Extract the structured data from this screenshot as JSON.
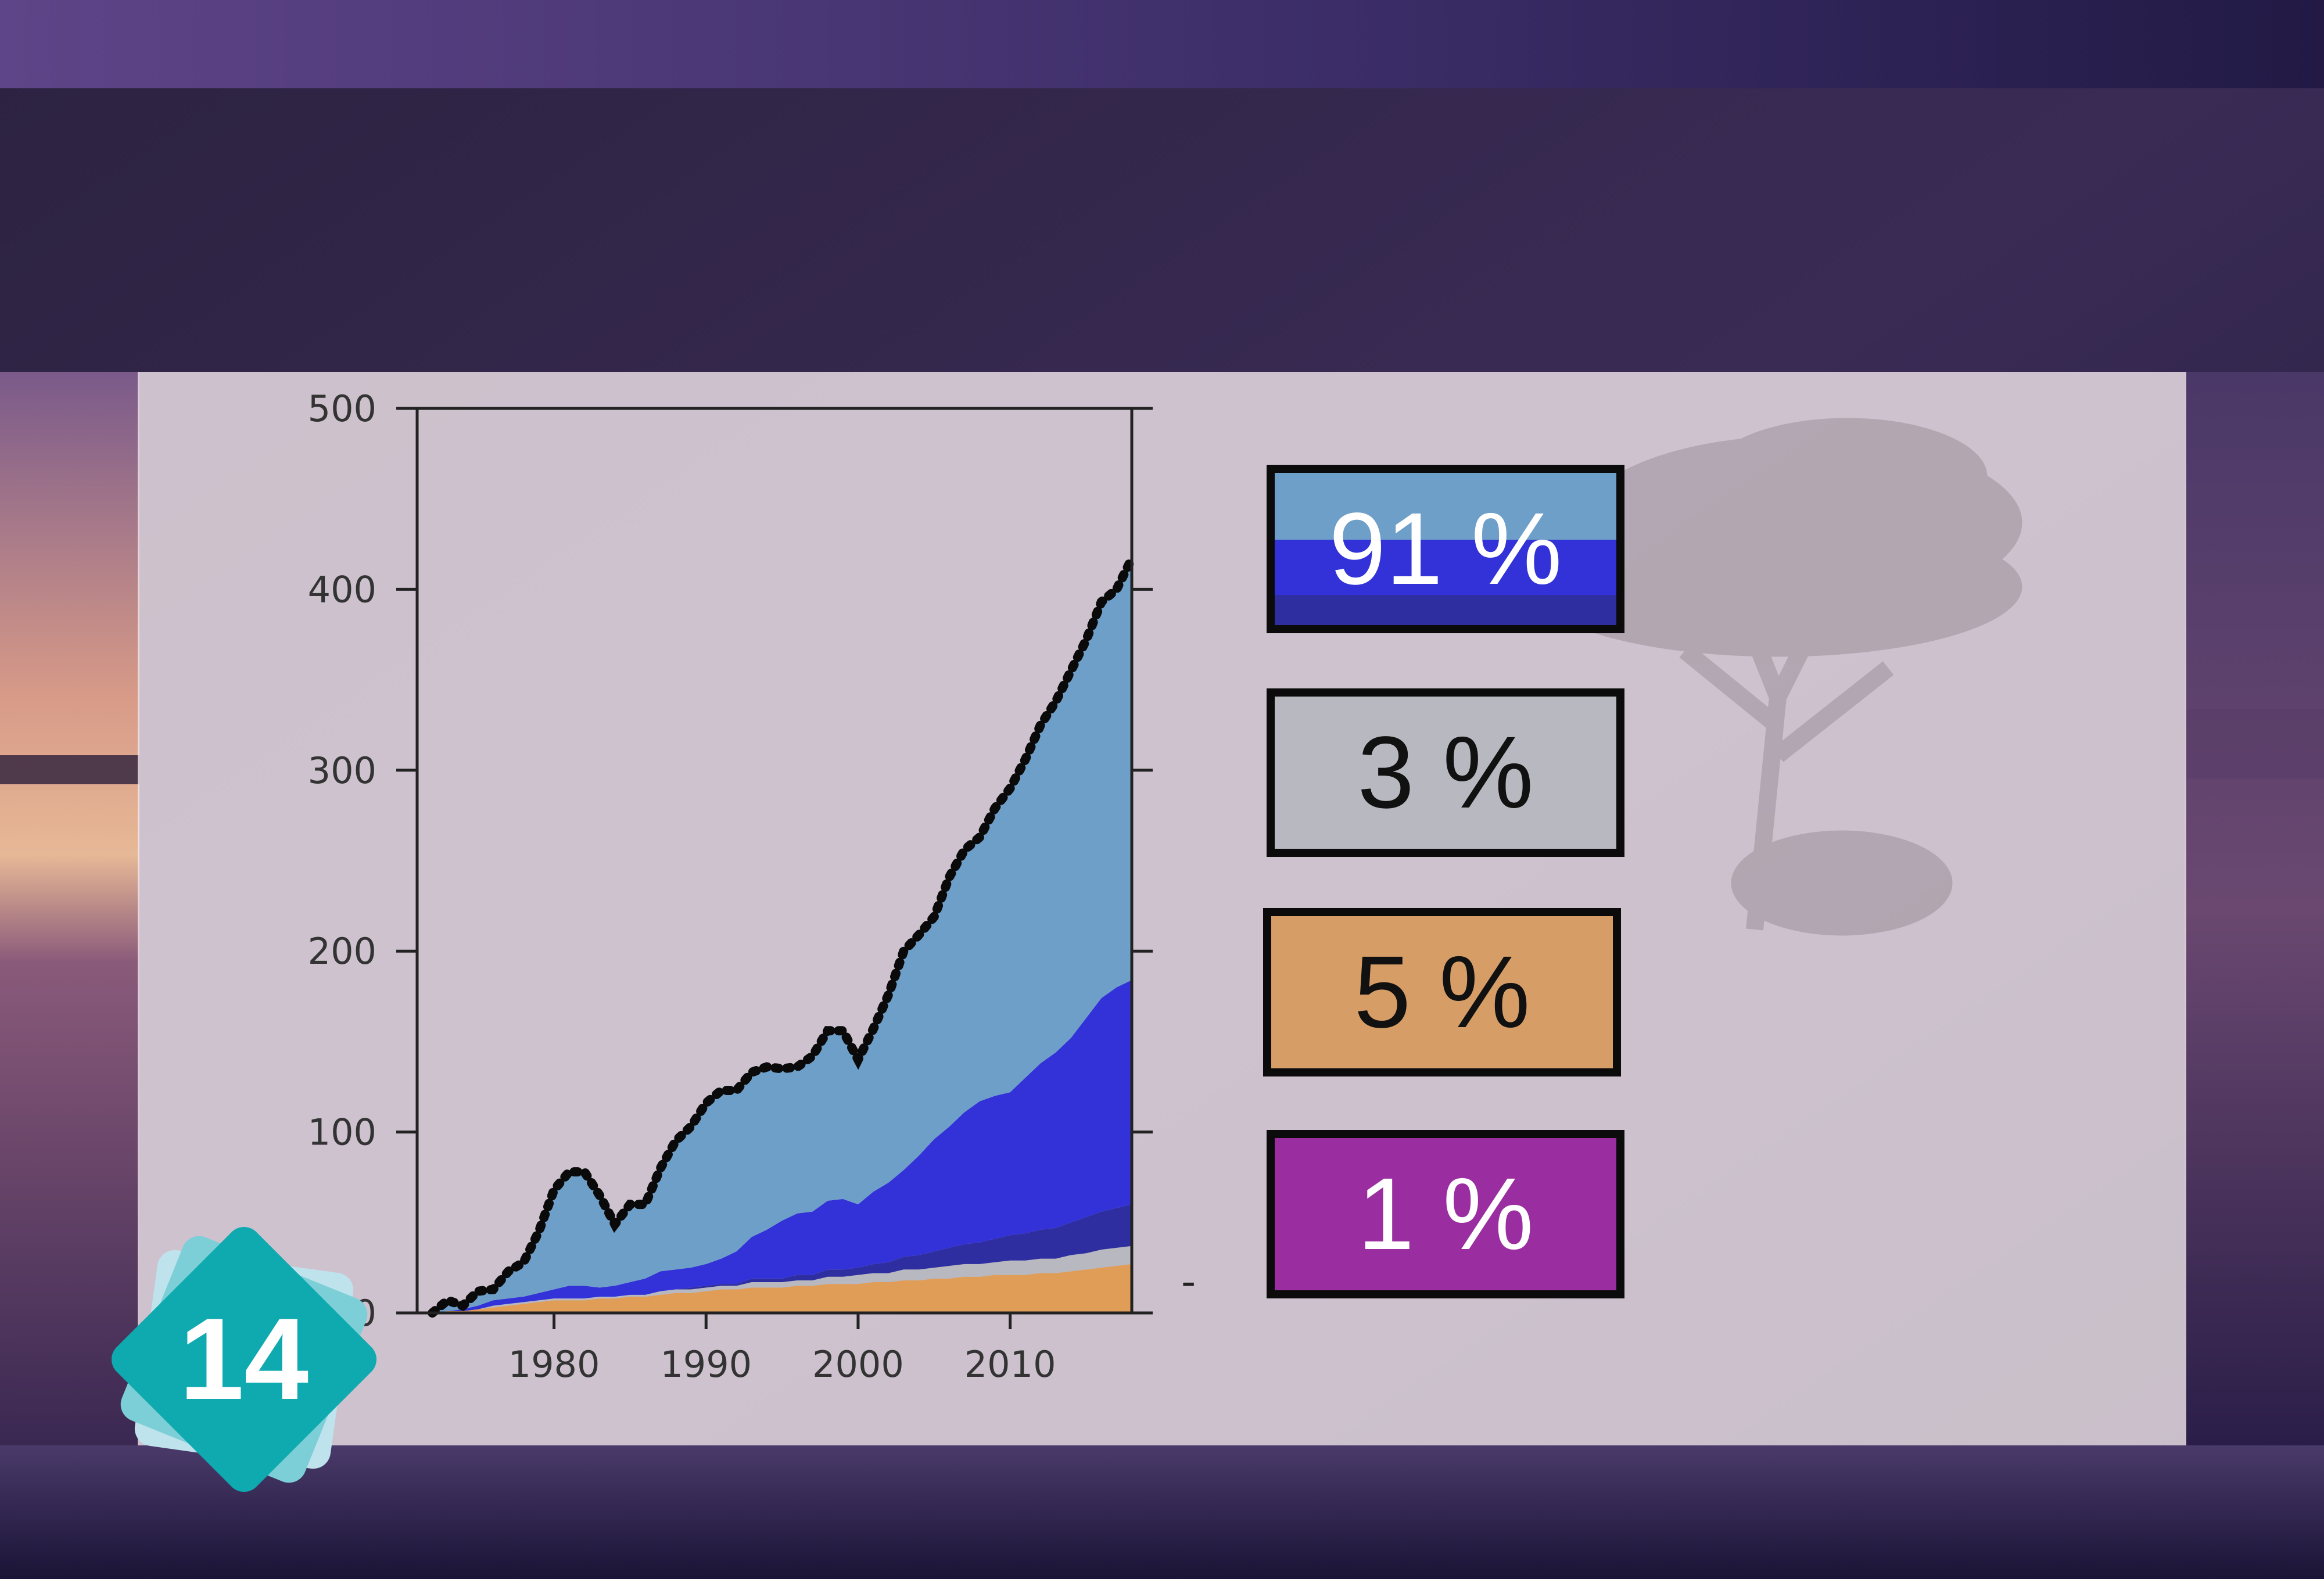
{
  "chart_data": {
    "type": "area",
    "stacked": true,
    "x": [
      1972,
      1973,
      1974,
      1975,
      1976,
      1977,
      1978,
      1979,
      1980,
      1981,
      1982,
      1983,
      1984,
      1985,
      1986,
      1987,
      1988,
      1989,
      1990,
      1991,
      1992,
      1993,
      1994,
      1995,
      1996,
      1997,
      1998,
      1999,
      2000,
      2001,
      2002,
      2003,
      2004,
      2005,
      2006,
      2007,
      2008,
      2009,
      2010,
      2011,
      2012,
      2013,
      2014,
      2015,
      2016,
      2017,
      2018
    ],
    "xticks": [
      "1980",
      "1990",
      "2000",
      "2010"
    ],
    "yticks": [
      "0",
      "100",
      "200",
      "300",
      "400",
      "500"
    ],
    "ylim": [
      0,
      500
    ],
    "xlim": [
      1971,
      2018
    ],
    "series": [
      {
        "color": "#e09d58",
        "values": [
          0,
          1,
          1,
          2,
          3,
          4,
          5,
          6,
          7,
          7,
          7,
          8,
          8,
          9,
          9,
          10,
          11,
          11,
          12,
          13,
          13,
          14,
          14,
          14,
          15,
          15,
          16,
          16,
          16,
          17,
          17,
          18,
          18,
          19,
          19,
          20,
          20,
          21,
          21,
          21,
          22,
          22,
          23,
          24,
          25,
          26,
          27
        ]
      },
      {
        "color": "#b8b8c0",
        "values": [
          0,
          0,
          0,
          0,
          1,
          1,
          1,
          1,
          1,
          1,
          1,
          1,
          1,
          1,
          1,
          2,
          2,
          2,
          2,
          2,
          2,
          3,
          3,
          3,
          3,
          3,
          4,
          4,
          5,
          5,
          5,
          6,
          6,
          6,
          7,
          7,
          7,
          7,
          8,
          8,
          8,
          8,
          9,
          9,
          10,
          10,
          10
        ]
      },
      {
        "color": "#2e2ea0",
        "values": [
          0,
          0,
          0,
          0,
          0,
          0,
          0,
          0,
          0,
          0,
          0,
          0,
          0,
          0,
          0,
          0,
          0,
          1,
          1,
          1,
          1,
          2,
          2,
          2,
          3,
          3,
          4,
          4,
          4,
          5,
          6,
          7,
          8,
          9,
          10,
          11,
          12,
          13,
          14,
          15,
          16,
          17,
          18,
          20,
          21,
          22,
          23
        ]
      },
      {
        "color": "#3232d8",
        "values": [
          0,
          0,
          1,
          2,
          3,
          3,
          3,
          4,
          5,
          7,
          7,
          5,
          6,
          7,
          9,
          11,
          11,
          11,
          12,
          14,
          18,
          23,
          27,
          32,
          34,
          35,
          38,
          39,
          35,
          40,
          44,
          48,
          55,
          62,
          67,
          73,
          78,
          79,
          79,
          86,
          92,
          97,
          102,
          110,
          118,
          122,
          124
        ]
      },
      {
        "color": "#6e9fc8",
        "values": [
          0,
          6,
          2,
          8,
          6,
          15,
          19,
          34,
          55,
          63,
          63,
          51,
          34,
          43,
          41,
          57,
          71,
          78,
          89,
          93,
          89,
          91,
          90,
          84,
          81,
          86,
          94,
          93,
          80,
          90,
          104,
          121,
          122,
          123,
          138,
          145,
          146,
          159,
          168,
          176,
          187,
          194,
          203,
          209,
          219,
          220,
          233
        ]
      }
    ],
    "total_line": {
      "style": "dotted",
      "color": "#0a0a0a"
    },
    "legend": [
      {
        "label": "91 %",
        "color": "#6e9fc8",
        "color2": "#3232d8",
        "color3": "#2e2ea0",
        "text_color": "#ffffff"
      },
      {
        "label": "3 %",
        "color": "#b8b8c0",
        "text_color": "#111111"
      },
      {
        "label": "5 %",
        "color": "#d69e66",
        "text_color": "#111111"
      },
      {
        "label": "1 %",
        "color": "#9a2ea0",
        "text_color": "#ffffff"
      }
    ],
    "side_mark": "-",
    "badge": {
      "number": "14",
      "color": "#0fa9b0"
    }
  }
}
